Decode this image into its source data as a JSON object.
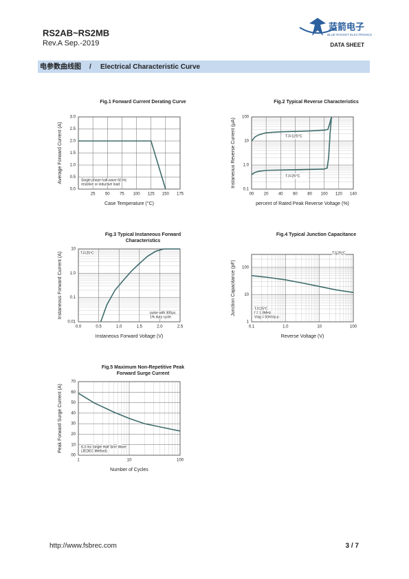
{
  "header": {
    "part": "RS2AB~RS2MB",
    "revision": "Rev.A Sep.-2019",
    "logo_cn": "蓝箭电子",
    "logo_en": "BLUE ROCKET ELECTRONICS",
    "doc_type": "DATA SHEET"
  },
  "section": {
    "cn": "电参数曲线图",
    "sep": "/",
    "en": "Electrical Characteristic Curve"
  },
  "chart_data": [
    {
      "type": "line",
      "title": [
        "Fig.1  Forward Current Derating Curve"
      ],
      "xlabel": "Case Temperature (°C)",
      "ylabel": "Average Forward Current  (A)",
      "xlim": [
        0,
        175
      ],
      "xticks": [
        25,
        50,
        75,
        100,
        125,
        150,
        175
      ],
      "ylim": [
        0,
        3
      ],
      "yticks": [
        {
          "value": 0,
          "label": "0.0"
        },
        {
          "value": 0.5,
          "label": "0.5"
        },
        {
          "value": 1,
          "label": "1.0"
        },
        {
          "value": 1.5,
          "label": "1.5"
        },
        {
          "value": 2,
          "label": "2.0"
        },
        {
          "value": 2.5,
          "label": "2.5"
        },
        {
          "value": 3,
          "label": "3.0"
        }
      ],
      "xlog": false,
      "ylog": false,
      "grid": true,
      "series": [
        {
          "color": "#3e6b6b",
          "x": [
            0,
            125,
            150
          ],
          "values": [
            2,
            2,
            0
          ]
        }
      ],
      "annotations": [
        "Single phase half-wave 60 Hz",
        "resistive or inductive load"
      ]
    },
    {
      "type": "line",
      "title": [
        "Fig.2  Typical Reverse Characteristics"
      ],
      "xlabel": "percent of Rated Peak Reverse Voltage (%)",
      "ylabel": "Instaneous Reverse Current  (μA)",
      "xlim": [
        0,
        140
      ],
      "xticks": [
        {
          "value": 0,
          "label": "00"
        },
        20,
        40,
        60,
        80,
        100,
        120,
        140
      ],
      "ylim": [
        0.1,
        100
      ],
      "yticks": [
        0.1,
        {
          "value": 1,
          "label": "1.0"
        },
        10,
        100
      ],
      "xlog": false,
      "ylog": true,
      "grid": true,
      "series": [
        {
          "name": "TJ=125°C",
          "color": "#3e6b6b",
          "x": [
            0,
            5,
            10,
            20,
            40,
            60,
            80,
            100,
            105,
            108,
            110
          ],
          "values": [
            10,
            15,
            18,
            22,
            24,
            25,
            26,
            28,
            30,
            60,
            100
          ]
        },
        {
          "name": "TJ=25°C",
          "color": "#3e6b6b",
          "x": [
            0,
            5,
            10,
            20,
            40,
            60,
            80,
            100,
            104,
            106,
            108,
            110
          ],
          "values": [
            0.4,
            0.5,
            0.55,
            0.6,
            0.62,
            0.64,
            0.66,
            0.68,
            0.75,
            2,
            20,
            100
          ]
        }
      ],
      "annotations": []
    },
    {
      "type": "line",
      "title": [
        "Fig.3  Typical Instaneous Forward",
        "Characteristics"
      ],
      "xlabel": "Instaneous Forward Voltage (V)",
      "ylabel": "Instaneous Forward Current (A)",
      "xlim": [
        0,
        2.5
      ],
      "xticks": [
        {
          "value": 0,
          "label": "0.0"
        },
        {
          "value": 0.5,
          "label": "0.5"
        },
        {
          "value": 1,
          "label": "1.0"
        },
        {
          "value": 1.5,
          "label": "1.5"
        },
        {
          "value": 2,
          "label": "2.0"
        },
        {
          "value": 2.5,
          "label": "2.5"
        }
      ],
      "ylim": [
        0.01,
        10
      ],
      "yticks": [
        0.01,
        0.1,
        {
          "value": 1,
          "label": "1.0"
        },
        10
      ],
      "xlog": false,
      "ylog": true,
      "grid": true,
      "series": [
        {
          "color": "#3e6b6b",
          "x": [
            0.55,
            0.7,
            0.9,
            1.1,
            1.3,
            1.5,
            1.7,
            1.9,
            2.1,
            2.5
          ],
          "values": [
            0.01,
            0.05,
            0.2,
            0.5,
            1.2,
            2.5,
            5,
            8,
            10,
            10
          ]
        }
      ],
      "annotations": [
        "TJ=25°C",
        "pulse with 300μs",
        "1% duty cycle"
      ]
    },
    {
      "type": "line",
      "title": [
        "Fig.4  Typical Junction Capacitance"
      ],
      "xlabel": "Reverse  Voltage (V)",
      "ylabel": "Junction Capacitance (pF)",
      "xlim": [
        0.1,
        100
      ],
      "xticks": [
        0.1,
        {
          "value": 1,
          "label": "1.0"
        },
        10,
        100
      ],
      "ylim": [
        1,
        300
      ],
      "yticks": [
        1,
        10,
        100
      ],
      "xlog": true,
      "ylog": true,
      "grid": true,
      "series": [
        {
          "color": "#3e6b6b",
          "x": [
            0.1,
            0.3,
            1,
            3,
            10,
            30,
            100
          ],
          "values": [
            50,
            43,
            35,
            27,
            20,
            15,
            12
          ]
        }
      ],
      "annotations": [
        "TJ=25°C",
        "TJ=25°C",
        "f = 1.0MHz",
        "Vsig = 50mVp-p"
      ]
    },
    {
      "type": "line",
      "title": [
        "Fig.5  Maximum Non-Repetitive Peak",
        "Forward Surge Current"
      ],
      "xlabel": "Number of Cycles",
      "ylabel": "Peak Forward Surge Current (A)",
      "xlim": [
        1,
        100
      ],
      "xticks": [
        1,
        10,
        100
      ],
      "ylim": [
        0,
        70
      ],
      "yticks": [
        {
          "value": 0,
          "label": "00"
        },
        10,
        20,
        30,
        40,
        50,
        60,
        70
      ],
      "xlog": true,
      "ylog": false,
      "grid": true,
      "series": [
        {
          "color": "#3e6b6b",
          "x": [
            1,
            2,
            5,
            10,
            20,
            50,
            100
          ],
          "values": [
            59,
            50,
            41,
            35,
            30,
            26,
            23
          ]
        }
      ],
      "annotations": [
        "8.3 ms Single Half Sine Wave",
        "(JEDEC Method)"
      ]
    }
  ],
  "footer": {
    "url": "http://www.fsbrec.com",
    "page": "3 / 7"
  }
}
